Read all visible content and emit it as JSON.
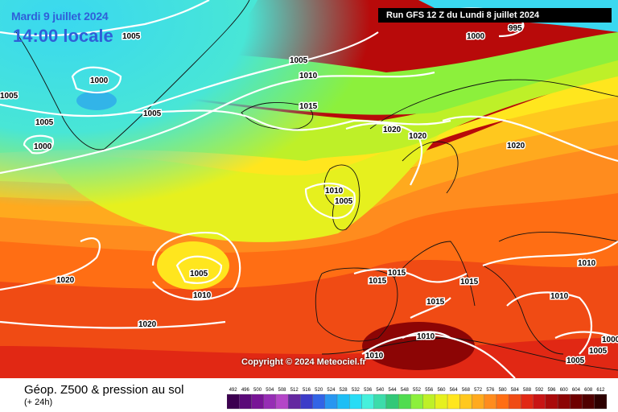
{
  "header": {
    "date_line": "Mardi 9 juillet 2024",
    "time_line": "14:00 locale",
    "run_info": "Run GFS 12 Z du Lundi 8 juillet 2024"
  },
  "footer": {
    "copyright": "Copyright © 2024 Meteociel.fr",
    "legend_title": "Géop. Z500 & pression au sol",
    "legend_subtitle": "(+ 24h)"
  },
  "legend_scale": {
    "values": [
      "492",
      "496",
      "500",
      "504",
      "508",
      "512",
      "516",
      "520",
      "524",
      "528",
      "532",
      "536",
      "540",
      "544",
      "548",
      "552",
      "556",
      "560",
      "564",
      "568",
      "572",
      "576",
      "580",
      "584",
      "588",
      "592",
      "596",
      "600",
      "604",
      "608",
      "612"
    ],
    "colors": [
      "#3c0050",
      "#5a0a78",
      "#781496",
      "#962db4",
      "#b446c8",
      "#6428a0",
      "#3c3cc8",
      "#3264e6",
      "#2896f0",
      "#1ebef5",
      "#28dcf5",
      "#46f0dc",
      "#3cdcaa",
      "#32c878",
      "#50dc50",
      "#8cf03c",
      "#bef028",
      "#e6f01e",
      "#ffe61e",
      "#ffc81e",
      "#ffaa1e",
      "#ff8c1e",
      "#ff6e14",
      "#f04b14",
      "#e12814",
      "#c81414",
      "#aa0a0a",
      "#8c0505",
      "#6e0000",
      "#500000",
      "#2d0000"
    ]
  },
  "isobars": [
    {
      "label": "1005",
      "pos": "top-left-greenland"
    },
    {
      "label": "1000",
      "pos": "greenland-center"
    },
    {
      "label": "1005",
      "pos": "greenland-west"
    },
    {
      "label": "1005",
      "pos": "greenland-south"
    },
    {
      "label": "1000",
      "pos": "labrador"
    },
    {
      "label": "1005",
      "pos": "left-edge"
    },
    {
      "label": "1005",
      "pos": "denmark-strait"
    },
    {
      "label": "1010",
      "pos": "iceland-north"
    },
    {
      "label": "1015",
      "pos": "iceland-east"
    },
    {
      "label": "1000",
      "pos": "arctic"
    },
    {
      "label": "995",
      "pos": "arctic-top"
    },
    {
      "label": "1020",
      "pos": "norway"
    },
    {
      "label": "1020",
      "pos": "sweden"
    },
    {
      "label": "1020",
      "pos": "russia"
    },
    {
      "label": "1010",
      "pos": "scotland"
    },
    {
      "label": "1005",
      "pos": "irish-sea"
    },
    {
      "label": "1005",
      "pos": "atlantic-low"
    },
    {
      "label": "1010",
      "pos": "atlantic-low-ring"
    },
    {
      "label": "1020",
      "pos": "azores-north"
    },
    {
      "label": "1020",
      "pos": "azores"
    },
    {
      "label": "1015",
      "pos": "biscay"
    },
    {
      "label": "1015",
      "pos": "france"
    },
    {
      "label": "1015",
      "pos": "italy"
    },
    {
      "label": "1015",
      "pos": "mediterranean"
    },
    {
      "label": "1010",
      "pos": "north-africa"
    },
    {
      "label": "1010",
      "pos": "tunisia"
    },
    {
      "label": "1010",
      "pos": "balkans"
    },
    {
      "label": "1010",
      "pos": "black-sea"
    },
    {
      "label": "1005",
      "pos": "turkey"
    },
    {
      "label": "1005",
      "pos": "turkey-east"
    },
    {
      "label": "1000",
      "pos": "middle-east"
    }
  ]
}
